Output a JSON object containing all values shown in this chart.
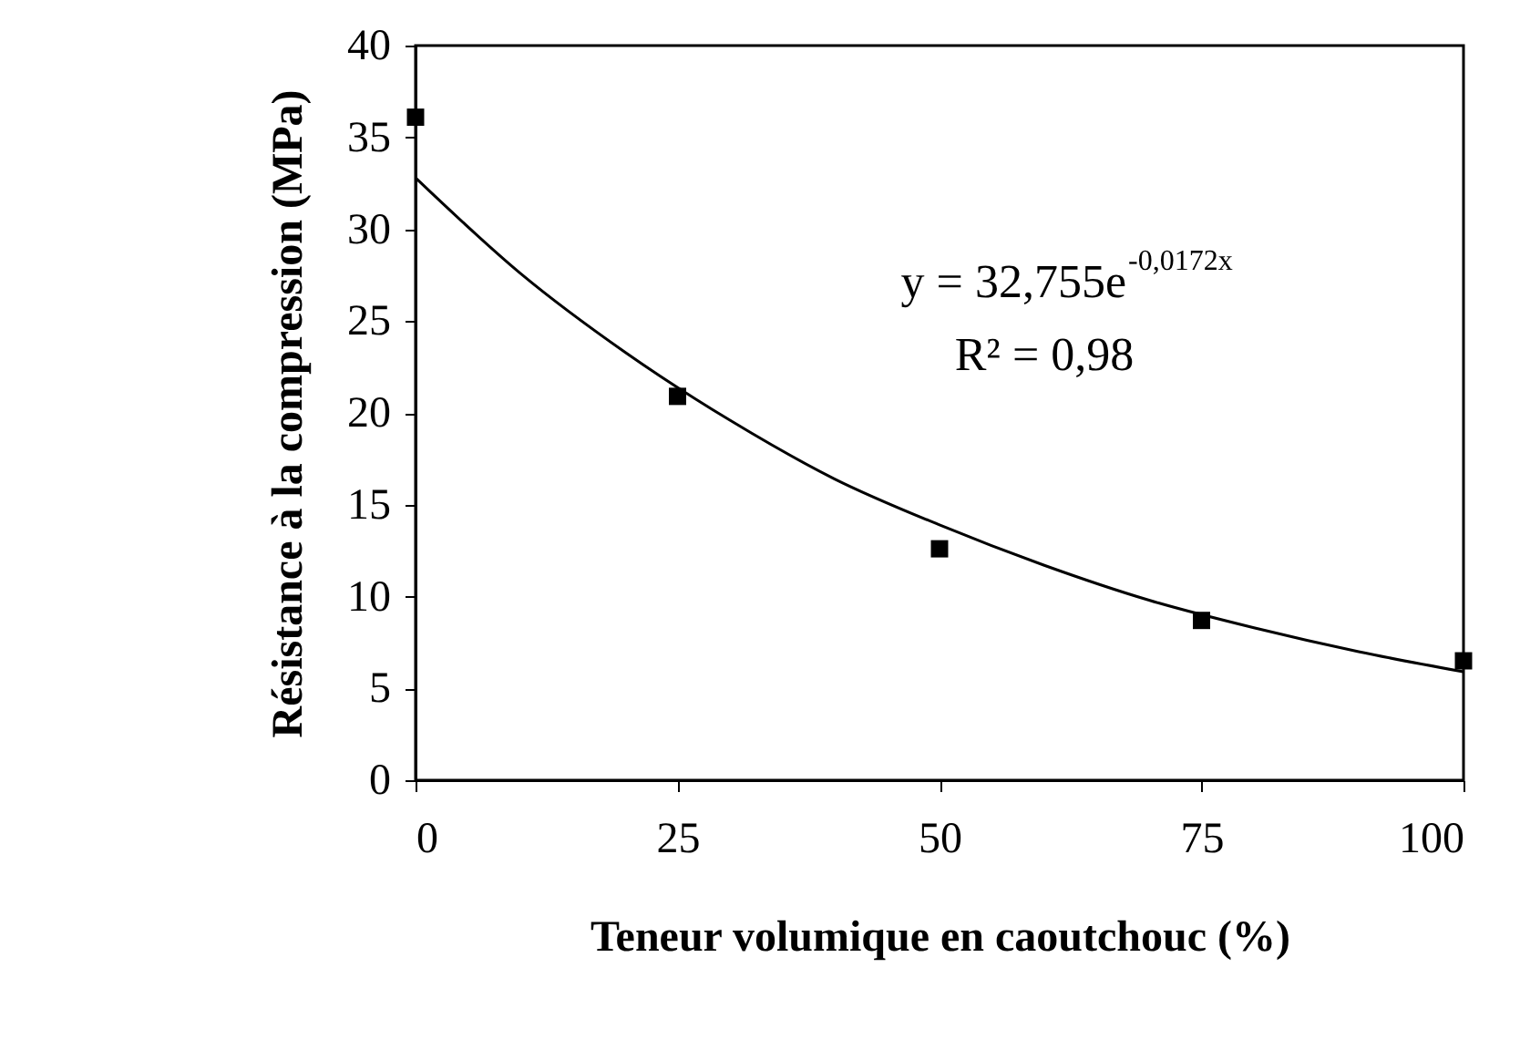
{
  "chart_data": {
    "type": "scatter",
    "xlabel": "Teneur volumique en caoutchouc (%)",
    "ylabel": "Résistance à la compression (MPa)",
    "xlim": [
      0,
      100
    ],
    "xticks": [
      0,
      25,
      50,
      75,
      100
    ],
    "ylim": [
      0,
      40
    ],
    "yticks": [
      0,
      5,
      10,
      15,
      20,
      25,
      30,
      35,
      40
    ],
    "grid": false,
    "series": [
      {
        "marker": "square",
        "color": "#000000",
        "x": [
          0,
          25,
          50,
          75,
          100
        ],
        "values": [
          36.1,
          20.9,
          12.6,
          8.7,
          6.5
        ]
      },
      {
        "type": "line",
        "marker": "none",
        "color": "#000000",
        "line_style": "solid",
        "x": [
          0,
          10,
          20,
          30,
          40,
          50,
          60,
          70,
          80,
          90,
          100
        ],
        "values": [
          32.8,
          27.6,
          23.3,
          19.6,
          16.4,
          13.9,
          11.7,
          9.8,
          8.3,
          7.0,
          5.9
        ]
      }
    ],
    "annotations": [
      "y = 32,755e$^{-0,0172x}$",
      "R² = 0,98"
    ]
  }
}
